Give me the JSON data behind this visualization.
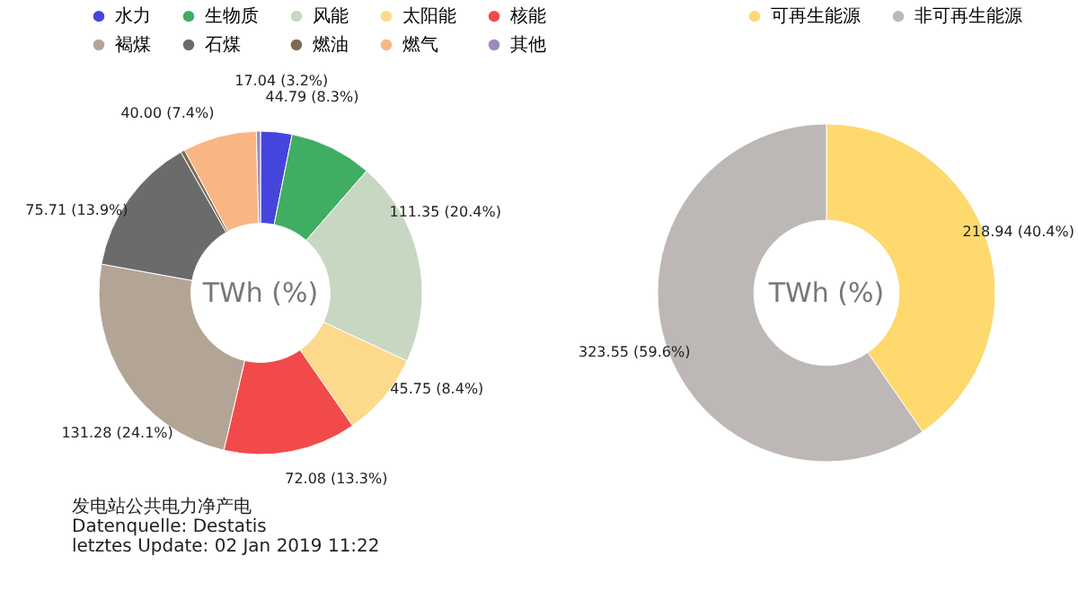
{
  "chart_data": [
    {
      "type": "donut",
      "categories": [
        "水力",
        "生物质",
        "风能",
        "太阳能",
        "核能",
        "褐煤",
        "石煤",
        "燃油",
        "燃气",
        "其他"
      ],
      "values": [
        17.04,
        44.79,
        111.35,
        45.75,
        72.08,
        131.28,
        75.71,
        2.24,
        40.0,
        2.24
      ],
      "colors": [
        "#4545dd",
        "#40ad62",
        "#c7d7c2",
        "#fdd98b",
        "#f24a4a",
        "#b3a595",
        "#6b6b6b",
        "#7d6b52",
        "#f9b584",
        "#9d89bb"
      ],
      "value_labels": [
        "17.04 (3.2%)",
        "44.79 (8.3%)",
        "111.35 (20.4%)",
        "45.75 (8.4%)",
        "72.08 (13.3%)",
        "131.28 (24.1%)",
        "75.71 (13.9%)",
        null,
        "40.00 (7.4%)",
        null
      ],
      "legend": "top",
      "annotations": [
        "TWh (%)",
        "发电站公共电力净产电",
        "Datenquelle: Destatis",
        "letztes Update: 02 Jan 2019 11:22"
      ]
    },
    {
      "type": "donut",
      "categories": [
        "可再生能源",
        "非可再生能源"
      ],
      "values": [
        218.94,
        323.55
      ],
      "colors": [
        "#fdd96e",
        "#bdb8b6"
      ],
      "value_labels": [
        "218.94 (40.4%)",
        "323.55 (59.6%)"
      ],
      "legend": "top",
      "annotations": [
        "TWh (%)"
      ]
    }
  ]
}
